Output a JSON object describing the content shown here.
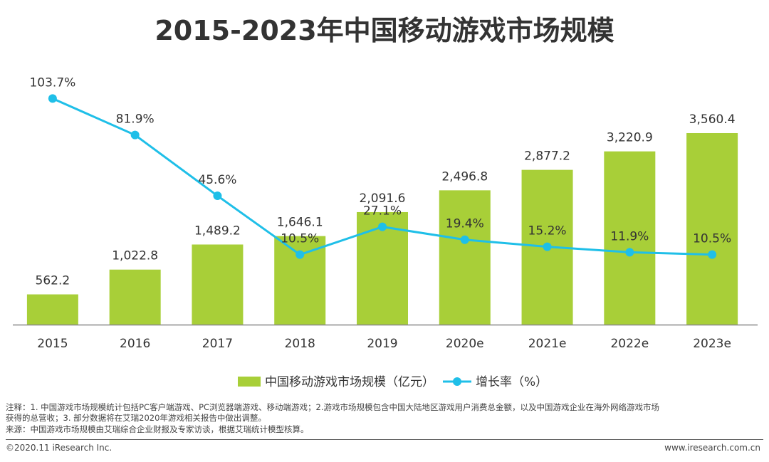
{
  "chart_data": {
    "type": "bar+line",
    "title": "2015-2023年中国移动游戏市场规模",
    "categories": [
      "2015",
      "2016",
      "2017",
      "2018",
      "2019",
      "2020e",
      "2021e",
      "2022e",
      "2023e"
    ],
    "series": [
      {
        "name": "中国移动游戏市场规模（亿元）",
        "type": "bar",
        "values": [
          562.2,
          1022.8,
          1489.2,
          1646.1,
          2091.6,
          2496.8,
          2877.2,
          3220.9,
          3560.4
        ],
        "labels": [
          "562.2",
          "1,022.8",
          "1,489.2",
          "1,646.1",
          "2,091.6",
          "2,496.8",
          "2,877.2",
          "3,220.9",
          "3,560.4"
        ]
      },
      {
        "name": "增长率（%）",
        "type": "line",
        "values": [
          103.7,
          81.9,
          45.6,
          10.5,
          27.1,
          19.4,
          15.2,
          11.9,
          10.5
        ],
        "labels": [
          "103.7%",
          "81.9%",
          "45.6%",
          "10.5%",
          "27.1%",
          "19.4%",
          "15.2%",
          "11.9%",
          "10.5%"
        ]
      }
    ],
    "legend_position": "bottom",
    "bar_axis_max": 4500,
    "line_axis_range": [
      -50,
      120
    ],
    "colors": {
      "bar": "#a8cf38",
      "line": "#1fbfe8",
      "axis": "#888888",
      "text": "#333333"
    }
  },
  "notes": {
    "line1": "注释：1. 中国游戏市场规模统计包括PC客户端游戏、PC浏览器端游戏、移动端游戏；2.游戏市场规模包含中国大陆地区游戏用户消费总金额，以及中国游戏企业在海外网络游戏市场",
    "line2": "获得的总营收；3. 部分数据将在艾瑞2020年游戏相关报告中做出调整。",
    "source": "来源：中国游戏市场规模由艾瑞综合企业财报及专家访谈，根据艾瑞统计模型核算。"
  },
  "footer": {
    "copyright": "©2020.11 iResearch Inc.",
    "website": "www.iresearch.com.cn"
  }
}
